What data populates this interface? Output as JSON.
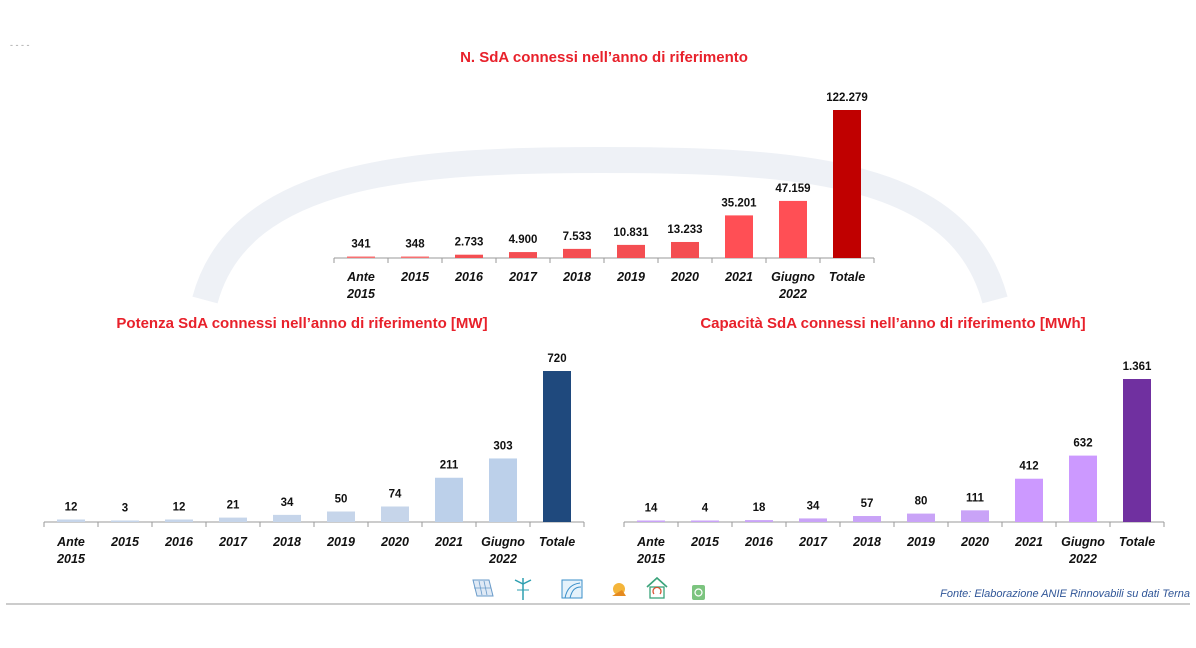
{
  "chart_data": [
    {
      "type": "bar",
      "title": "N. SdA connessi nell’anno di riferimento",
      "categories": [
        "Ante 2015",
        "2015",
        "2016",
        "2017",
        "2018",
        "2019",
        "2020",
        "2021",
        "Giugno 2022",
        "Totale"
      ],
      "values": [
        341,
        348,
        2733,
        4900,
        7533,
        10831,
        13233,
        35201,
        47159,
        122279
      ],
      "value_labels": [
        "341",
        "348",
        "2.733",
        "4.900",
        "7.533",
        "10.831",
        "13.233",
        "35.201",
        "47.159",
        "122.279"
      ],
      "colors": [
        "#f77072",
        "#f77072",
        "#f44e52",
        "#f44e52",
        "#f44e52",
        "#f44e52",
        "#f44e52",
        "#ff4f55",
        "#ff4f55",
        "#c00000"
      ],
      "xlabel": "",
      "ylabel": "",
      "ylim": [
        0,
        122279
      ],
      "grid": false
    },
    {
      "type": "bar",
      "title": "Potenza SdA connessi nell’anno di riferimento [MW]",
      "categories": [
        "Ante 2015",
        "2015",
        "2016",
        "2017",
        "2018",
        "2019",
        "2020",
        "2021",
        "Giugno 2022",
        "Totale"
      ],
      "values": [
        12,
        3,
        12,
        21,
        34,
        50,
        74,
        211,
        303,
        720
      ],
      "value_labels": [
        "12",
        "3",
        "12",
        "21",
        "34",
        "50",
        "74",
        "211",
        "303",
        "720"
      ],
      "colors": [
        "#c6d5ea",
        "#c6d5ea",
        "#c6d5ea",
        "#c6d5ea",
        "#c6d5ea",
        "#c6d5ea",
        "#c6d5ea",
        "#bcd0ea",
        "#bcd0ea",
        "#1f497d"
      ],
      "xlabel": "",
      "ylabel": "",
      "ylim": [
        0,
        720
      ],
      "grid": false
    },
    {
      "type": "bar",
      "title": "Capacità SdA connessi nell’anno di riferimento [MWh]",
      "categories": [
        "Ante 2015",
        "2015",
        "2016",
        "2017",
        "2018",
        "2019",
        "2020",
        "2021",
        "Giugno 2022",
        "Totale"
      ],
      "values": [
        14,
        4,
        18,
        34,
        57,
        80,
        111,
        412,
        632,
        1361
      ],
      "value_labels": [
        "14",
        "4",
        "18",
        "34",
        "57",
        "80",
        "111",
        "412",
        "632",
        "1.361"
      ],
      "colors": [
        "#c9a3f7",
        "#c9a3f7",
        "#c9a3f7",
        "#c9a3f7",
        "#c9a3f7",
        "#c9a3f7",
        "#c9a3f7",
        "#cc99ff",
        "#cc99ff",
        "#7030a0"
      ],
      "xlabel": "",
      "ylabel": "",
      "ylim": [
        0,
        1361
      ],
      "grid": false
    }
  ],
  "footer": {
    "source": "Fonte: Elaborazione ANIE Rinnovabili su dati Terna",
    "icons": [
      "solar-panel-icon",
      "wind-turbine-icon",
      "hydro-icon",
      "geothermal-icon",
      "storage-house-icon",
      "bioenergy-icon"
    ],
    "divider_color": "#9a9a9a"
  },
  "decor": {
    "top_left_mark": "- - - -"
  }
}
